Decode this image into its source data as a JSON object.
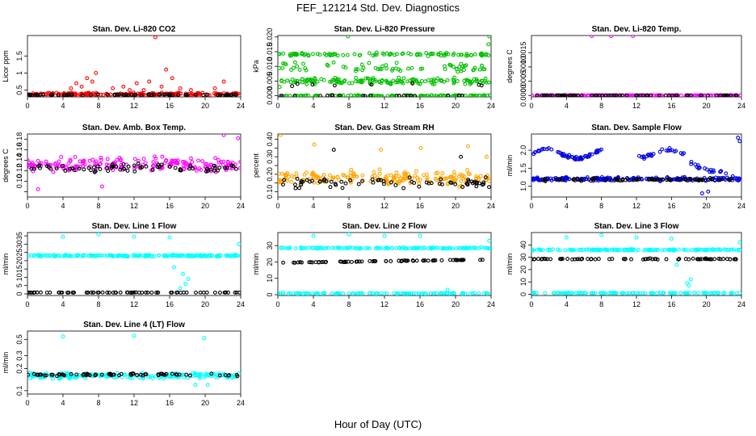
{
  "figure": {
    "title": "FEF_121214  Std. Dev. Diagnostics",
    "xlabel": "Hour of Day (UTC)"
  },
  "chart_data": [
    {
      "type": "scatter",
      "title": "Stan. Dev. Li-820 CO2",
      "ylabel": "Licor ppm",
      "xlim": [
        0,
        24
      ],
      "ylim": [
        0.3,
        2.1
      ],
      "xticks": [
        0,
        4,
        8,
        12,
        16,
        20,
        24
      ],
      "yticks": [
        0.5,
        1.0,
        1.5
      ],
      "series": [
        {
          "color": "#ff0000",
          "kind": "band",
          "base": 0.38,
          "spread": 0.06,
          "outliers": [
            [
              4.9,
              0.55
            ],
            [
              5.5,
              0.7
            ],
            [
              6.1,
              0.6
            ],
            [
              6.7,
              0.85
            ],
            [
              7.3,
              0.75
            ],
            [
              7.7,
              1.0
            ],
            [
              9.6,
              0.55
            ],
            [
              10.8,
              0.6
            ],
            [
              11.5,
              0.5
            ],
            [
              12.3,
              0.7
            ],
            [
              13.1,
              0.5
            ],
            [
              13.7,
              0.75
            ],
            [
              14.4,
              2.05
            ],
            [
              15.1,
              0.6
            ],
            [
              15.6,
              1.1
            ],
            [
              16.3,
              0.85
            ],
            [
              17.2,
              0.55
            ],
            [
              18.4,
              0.5
            ],
            [
              21.1,
              0.55
            ],
            [
              22.1,
              0.75
            ],
            [
              23.5,
              0.4
            ]
          ]
        },
        {
          "color": "#000000",
          "kind": "band",
          "base": 0.36,
          "spread": 0.025
        }
      ]
    },
    {
      "type": "scatter",
      "title": "Stan. Dev. Li-820 Pressure",
      "ylabel": "kPa",
      "xlim": [
        0,
        24
      ],
      "ylim": [
        -0.0004,
        0.0205
      ],
      "xticks": [
        0,
        4,
        8,
        12,
        16,
        20,
        24
      ],
      "yticks": [
        0.0,
        0.005,
        0.01,
        0.015,
        0.02
      ],
      "ytick_labels": [
        "0.000",
        "0.005",
        "0.010",
        "0.015",
        "0.020"
      ],
      "series": [
        {
          "color": "#00c000",
          "kind": "multiband",
          "bands": [
            [
              0.0,
              0.0003,
              0.6
            ],
            [
              0.005,
              0.0015,
              0.8
            ],
            [
              0.014,
              0.0008,
              0.5
            ],
            [
              0.0095,
              0.0025,
              0.35
            ]
          ],
          "outliers": [
            [
              7.9,
              0.0202
            ],
            [
              23.8,
              0.0202
            ],
            [
              23.7,
              0.0175
            ],
            [
              0.2,
              0.003
            ]
          ]
        },
        {
          "color": "#000000",
          "kind": "multiband",
          "bands": [
            [
              0.0,
              0.0002,
              0.3
            ],
            [
              0.004,
              0.0015,
              0.12
            ]
          ]
        }
      ]
    },
    {
      "type": "scatter",
      "title": "Stan. Dev. Li-820 Temp.",
      "ylabel": "degrees C",
      "xlim": [
        0,
        24
      ],
      "ylim": [
        -5e-05,
        0.0021
      ],
      "xticks": [
        0,
        4,
        8,
        12,
        16,
        20,
        24
      ],
      "yticks": [
        0.0,
        0.0005,
        0.001,
        0.0015
      ],
      "ytick_labels": [
        "0.0000",
        "0.0005",
        "0.0010",
        "0.0015"
      ],
      "series": [
        {
          "color": "#ff00ff",
          "kind": "band",
          "base": 0.0,
          "spread": 0.0,
          "outliers": [
            [
              6.9,
              0.00208
            ],
            [
              9.1,
              0.00208
            ],
            [
              11.6,
              0.00208
            ]
          ]
        },
        {
          "color": "#000000",
          "kind": "band",
          "base": 0.0,
          "spread": 0.0
        }
      ]
    },
    {
      "type": "scatter",
      "title": "Stan. Dev. Amb. Box Temp.",
      "ylabel": "degrees C",
      "xlim": [
        0,
        24
      ],
      "ylim": [
        0.07,
        0.19
      ],
      "xticks": [
        0,
        4,
        8,
        12,
        16,
        20,
        24
      ],
      "yticks": [
        0.08,
        0.1,
        0.12,
        0.14,
        0.16,
        0.18
      ],
      "ytick_labels": [
        "",
        "0.10",
        "0.12",
        "0.14",
        "0.16",
        "0.18"
      ],
      "series": [
        {
          "color": "#ff00ff",
          "kind": "band",
          "base": 0.132,
          "spread": 0.02,
          "outliers": [
            [
              22.1,
              0.188
            ],
            [
              23.7,
              0.182
            ],
            [
              1.2,
              0.085
            ],
            [
              8.4,
              0.09
            ]
          ]
        },
        {
          "color": "#000000",
          "kind": "band",
          "base": 0.125,
          "spread": 0.012
        }
      ]
    },
    {
      "type": "scatter",
      "title": "Stan. Dev. Gas Stream RH",
      "ylabel": "percent",
      "xlim": [
        0,
        24
      ],
      "ylim": [
        0.07,
        0.43
      ],
      "xticks": [
        0,
        4,
        8,
        12,
        16,
        20,
        24
      ],
      "yticks": [
        0.1,
        0.15,
        0.2,
        0.25,
        0.3,
        0.35,
        0.4
      ],
      "ytick_labels": [
        "0.10",
        "",
        "0.20",
        "",
        "0.30",
        "",
        "0.40"
      ],
      "series": [
        {
          "color": "#ffa500",
          "kind": "band",
          "base": 0.18,
          "spread": 0.06,
          "outliers": [
            [
              0.3,
              0.425
            ],
            [
              4.1,
              0.37
            ],
            [
              11.6,
              0.34
            ],
            [
              16.1,
              0.35
            ],
            [
              21.4,
              0.36
            ],
            [
              23.5,
              0.3
            ]
          ]
        },
        {
          "color": "#000000",
          "kind": "band",
          "base": 0.15,
          "spread": 0.04,
          "outliers": [
            [
              6.3,
              0.34
            ],
            [
              20.6,
              0.3
            ]
          ]
        }
      ]
    },
    {
      "type": "scatter",
      "title": "Stan. Dev. Sample Flow",
      "ylabel": "ml/min",
      "xlim": [
        0,
        24
      ],
      "ylim": [
        0.7,
        2.45
      ],
      "xticks": [
        0,
        4,
        8,
        12,
        16,
        20,
        24
      ],
      "yticks": [
        1.0,
        1.5,
        2.0
      ],
      "ytick_labels": [
        "1.0",
        "1.5",
        "2.0"
      ],
      "series": [
        {
          "color": "#0000e0",
          "kind": "wave",
          "base": 1.2,
          "spread": 0.07,
          "upper": 1.9,
          "outliers": [
            [
              19.5,
              0.8
            ],
            [
              20.2,
              0.85
            ],
            [
              23.6,
              2.35
            ],
            [
              23.8,
              2.25
            ]
          ]
        },
        {
          "color": "#000000",
          "kind": "band",
          "base": 1.18,
          "spread": 0.05
        }
      ]
    },
    {
      "type": "scatter",
      "title": "Stan. Dev. Line 1 Flow",
      "ylabel": "ml/min",
      "xlim": [
        0,
        24
      ],
      "ylim": [
        -1,
        37
      ],
      "xticks": [
        0,
        4,
        8,
        12,
        16,
        20,
        24
      ],
      "yticks": [
        0,
        5,
        10,
        15,
        20,
        25,
        30,
        35
      ],
      "series": [
        {
          "color": "#00ffff",
          "kind": "band",
          "base": 23,
          "spread": 0.8,
          "outliers": [
            [
              4.0,
              34.5
            ],
            [
              8.0,
              36.0
            ],
            [
              12.0,
              34.5
            ],
            [
              16.0,
              34.0
            ],
            [
              23.8,
              30.0
            ],
            [
              17.5,
              12.0
            ],
            [
              17.8,
              6.0
            ],
            [
              18.1,
              9.0
            ],
            [
              16.5,
              16.0
            ],
            [
              17.2,
              3.5
            ]
          ]
        },
        {
          "color": "#000000",
          "kind": "band",
          "base": 0.8,
          "spread": 0.1
        }
      ]
    },
    {
      "type": "scatter",
      "title": "Stan. Dev. Line 2 Flow",
      "ylabel": "ml/min",
      "xlim": [
        0,
        24
      ],
      "ylim": [
        -0.5,
        38
      ],
      "xticks": [
        0,
        4,
        8,
        12,
        16,
        20,
        24
      ],
      "yticks": [
        0,
        10,
        20,
        30
      ],
      "series": [
        {
          "color": "#00ffff",
          "kind": "multiband",
          "bands": [
            [
              28.5,
              0.6,
              0.7
            ],
            [
              0.8,
              0.3,
              0.6
            ]
          ],
          "outliers": [
            [
              4.0,
              36.0
            ],
            [
              8.0,
              37.0
            ],
            [
              12.0,
              36.0
            ],
            [
              16.0,
              36.0
            ],
            [
              23.8,
              33.0
            ],
            [
              19.1,
              3.0
            ]
          ]
        },
        {
          "color": "#000000",
          "kind": "trend",
          "start": 19.5,
          "end": 21.5,
          "spread": 0.35
        }
      ]
    },
    {
      "type": "scatter",
      "title": "Stan. Dev. Line 3 Flow",
      "ylabel": "ml/min",
      "xlim": [
        0,
        24
      ],
      "ylim": [
        -1,
        50
      ],
      "xticks": [
        0,
        4,
        8,
        12,
        16,
        20,
        24
      ],
      "yticks": [
        0,
        10,
        20,
        30,
        40
      ],
      "series": [
        {
          "color": "#00ffff",
          "kind": "multiband",
          "bands": [
            [
              36.0,
              0.9,
              0.7
            ],
            [
              1.0,
              0.4,
              0.6
            ]
          ],
          "outliers": [
            [
              4.0,
              46.0
            ],
            [
              8.0,
              48.0
            ],
            [
              12.0,
              46.0
            ],
            [
              16.0,
              45.0
            ],
            [
              23.8,
              42.0
            ],
            [
              17.8,
              9.0
            ],
            [
              18.0,
              7.0
            ],
            [
              18.2,
              12.0
            ],
            [
              16.6,
              24.0
            ]
          ]
        },
        {
          "color": "#000000",
          "kind": "band",
          "base": 28.5,
          "spread": 0.6
        }
      ]
    },
    {
      "type": "scatter",
      "title": "Stan. Dev. Line 4 (LT) Flow",
      "ylabel": "ml/min",
      "xlim": [
        0,
        24
      ],
      "ylim": [
        0.09,
        0.65
      ],
      "ylog": true,
      "xticks": [
        0,
        4,
        8,
        12,
        16,
        20,
        24
      ],
      "yticks": [
        0.1,
        0.2,
        0.3,
        0.5
      ],
      "ytick_labels": [
        "0.1",
        "0.2",
        "0.3",
        "0.5"
      ],
      "series": [
        {
          "color": "#00ffff",
          "kind": "band",
          "base": 0.16,
          "spread": 0.022,
          "outliers": [
            [
              4.0,
              0.55
            ],
            [
              12.0,
              0.56
            ],
            [
              19.9,
              0.52
            ],
            [
              20.3,
              0.12
            ],
            [
              18.9,
              0.12
            ]
          ]
        },
        {
          "color": "#000000",
          "kind": "band",
          "base": 0.165,
          "spread": 0.01
        }
      ]
    }
  ]
}
